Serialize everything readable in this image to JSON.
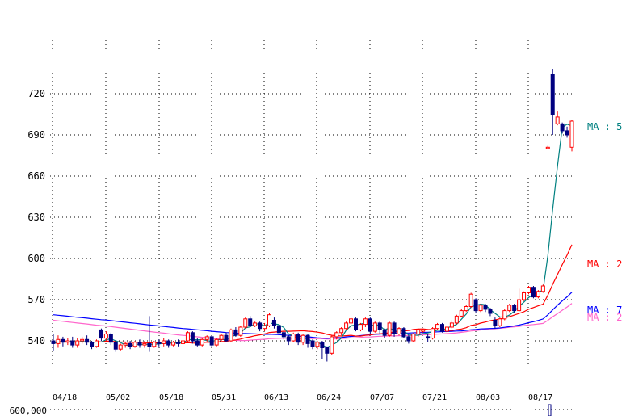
{
  "chart_data": {
    "type": "candlestick",
    "y_ticks": [
      "720",
      "690",
      "660",
      "630",
      "600",
      "570",
      "540"
    ],
    "y_tick_values": [
      720,
      690,
      660,
      630,
      600,
      570,
      540
    ],
    "x_ticks": [
      "04/18",
      "05/02",
      "05/18",
      "05/31",
      "06/13",
      "06/24",
      "07/07",
      "07/21",
      "08/03",
      "08/17"
    ],
    "ylim": [
      522,
      736
    ],
    "grid": true,
    "colors": {
      "up": "#ff0000",
      "down": "#000080",
      "ma5": "#008080",
      "ma25": "#ff0000",
      "ma75": "#0000ff",
      "ma200": "#ff66cc"
    },
    "moving_average_labels": [
      {
        "label": "MA : 5",
        "color": "#008080",
        "value": 690
      },
      {
        "label": "MA : 2",
        "color": "#ff0000",
        "value": 597
      },
      {
        "label": "MA : 7",
        "color": "#0000ff",
        "value": 562
      },
      {
        "label": "MA : 2",
        "color": "#ff66cc",
        "value": 556
      }
    ],
    "volume_tick": "600,000",
    "candles": [
      {
        "o": 540,
        "c": 538,
        "h": 545,
        "l": 533
      },
      {
        "o": 538,
        "c": 541,
        "h": 544,
        "l": 535
      },
      {
        "o": 541,
        "c": 539,
        "h": 543,
        "l": 536
      },
      {
        "o": 539,
        "c": 540,
        "h": 542,
        "l": 537
      },
      {
        "o": 540,
        "c": 537,
        "h": 543,
        "l": 535
      },
      {
        "o": 537,
        "c": 540,
        "h": 542,
        "l": 535
      },
      {
        "o": 540,
        "c": 541,
        "h": 543,
        "l": 538
      },
      {
        "o": 541,
        "c": 539,
        "h": 544,
        "l": 537
      },
      {
        "o": 539,
        "c": 536,
        "h": 540,
        "l": 534
      },
      {
        "o": 536,
        "c": 540,
        "h": 541,
        "l": 535
      },
      {
        "o": 548,
        "c": 542,
        "h": 549,
        "l": 540
      },
      {
        "o": 542,
        "c": 545,
        "h": 547,
        "l": 540
      },
      {
        "o": 545,
        "c": 539,
        "h": 546,
        "l": 537
      },
      {
        "o": 539,
        "c": 534,
        "h": 540,
        "l": 532
      },
      {
        "o": 534,
        "c": 537,
        "h": 538,
        "l": 533
      },
      {
        "o": 537,
        "c": 538,
        "h": 539,
        "l": 535
      },
      {
        "o": 538,
        "c": 536,
        "h": 540,
        "l": 534
      },
      {
        "o": 536,
        "c": 539,
        "h": 540,
        "l": 535
      },
      {
        "o": 539,
        "c": 537,
        "h": 541,
        "l": 535
      },
      {
        "o": 537,
        "c": 538,
        "h": 540,
        "l": 535
      },
      {
        "o": 538,
        "c": 536,
        "h": 558,
        "l": 532
      },
      {
        "o": 536,
        "c": 539,
        "h": 540,
        "l": 535
      },
      {
        "o": 539,
        "c": 538,
        "h": 541,
        "l": 536
      },
      {
        "o": 538,
        "c": 540,
        "h": 542,
        "l": 536
      },
      {
        "o": 540,
        "c": 537,
        "h": 541,
        "l": 535
      },
      {
        "o": 537,
        "c": 539,
        "h": 540,
        "l": 536
      },
      {
        "o": 539,
        "c": 538,
        "h": 541,
        "l": 536
      },
      {
        "o": 538,
        "c": 540,
        "h": 541,
        "l": 537
      },
      {
        "o": 540,
        "c": 546,
        "h": 547,
        "l": 539
      },
      {
        "o": 546,
        "c": 540,
        "h": 547,
        "l": 538
      },
      {
        "o": 540,
        "c": 537,
        "h": 542,
        "l": 536
      },
      {
        "o": 537,
        "c": 541,
        "h": 542,
        "l": 536
      },
      {
        "o": 541,
        "c": 543,
        "h": 544,
        "l": 539
      },
      {
        "o": 543,
        "c": 537,
        "h": 544,
        "l": 536
      },
      {
        "o": 537,
        "c": 541,
        "h": 542,
        "l": 536
      },
      {
        "o": 541,
        "c": 544,
        "h": 545,
        "l": 540
      },
      {
        "o": 544,
        "c": 540,
        "h": 546,
        "l": 539
      },
      {
        "o": 540,
        "c": 548,
        "h": 549,
        "l": 539
      },
      {
        "o": 548,
        "c": 544,
        "h": 550,
        "l": 543
      },
      {
        "o": 544,
        "c": 550,
        "h": 551,
        "l": 543
      },
      {
        "o": 550,
        "c": 556,
        "h": 557,
        "l": 549
      },
      {
        "o": 556,
        "c": 551,
        "h": 558,
        "l": 550
      },
      {
        "o": 551,
        "c": 553,
        "h": 554,
        "l": 550
      },
      {
        "o": 553,
        "c": 549,
        "h": 554,
        "l": 547
      },
      {
        "o": 549,
        "c": 551,
        "h": 553,
        "l": 547
      },
      {
        "o": 551,
        "c": 559,
        "h": 560,
        "l": 550
      },
      {
        "o": 555,
        "c": 551,
        "h": 557,
        "l": 549
      },
      {
        "o": 551,
        "c": 546,
        "h": 552,
        "l": 544
      },
      {
        "o": 546,
        "c": 543,
        "h": 547,
        "l": 541
      },
      {
        "o": 543,
        "c": 540,
        "h": 544,
        "l": 537
      },
      {
        "o": 540,
        "c": 545,
        "h": 546,
        "l": 539
      },
      {
        "o": 545,
        "c": 539,
        "h": 546,
        "l": 537
      },
      {
        "o": 539,
        "c": 544,
        "h": 545,
        "l": 537
      },
      {
        "o": 544,
        "c": 538,
        "h": 545,
        "l": 535
      },
      {
        "o": 540,
        "c": 536,
        "h": 541,
        "l": 534
      },
      {
        "o": 536,
        "c": 539,
        "h": 540,
        "l": 534
      },
      {
        "o": 539,
        "c": 535,
        "h": 540,
        "l": 527
      },
      {
        "o": 535,
        "c": 531,
        "h": 536,
        "l": 525
      },
      {
        "o": 531,
        "c": 543,
        "h": 544,
        "l": 530
      },
      {
        "o": 543,
        "c": 546,
        "h": 547,
        "l": 541
      },
      {
        "o": 546,
        "c": 549,
        "h": 550,
        "l": 544
      },
      {
        "o": 549,
        "c": 553,
        "h": 554,
        "l": 548
      },
      {
        "o": 553,
        "c": 556,
        "h": 557,
        "l": 552
      },
      {
        "o": 556,
        "c": 548,
        "h": 557,
        "l": 547
      },
      {
        "o": 548,
        "c": 552,
        "h": 553,
        "l": 547
      },
      {
        "o": 552,
        "c": 556,
        "h": 557,
        "l": 550
      },
      {
        "o": 556,
        "c": 547,
        "h": 557,
        "l": 545
      },
      {
        "o": 547,
        "c": 553,
        "h": 554,
        "l": 546
      },
      {
        "o": 553,
        "c": 548,
        "h": 554,
        "l": 545
      },
      {
        "o": 548,
        "c": 544,
        "h": 549,
        "l": 542
      },
      {
        "o": 544,
        "c": 553,
        "h": 554,
        "l": 543
      },
      {
        "o": 553,
        "c": 545,
        "h": 554,
        "l": 543
      },
      {
        "o": 545,
        "c": 549,
        "h": 550,
        "l": 544
      },
      {
        "o": 549,
        "c": 543,
        "h": 550,
        "l": 542
      },
      {
        "o": 543,
        "c": 540,
        "h": 544,
        "l": 538
      },
      {
        "o": 540,
        "c": 545,
        "h": 546,
        "l": 539
      },
      {
        "o": 545,
        "c": 548,
        "h": 549,
        "l": 543
      },
      {
        "o": 547,
        "c": 548,
        "h": 549,
        "l": 546
      },
      {
        "o": 543,
        "c": 542,
        "h": 545,
        "l": 539
      },
      {
        "o": 542,
        "c": 549,
        "h": 550,
        "l": 541
      },
      {
        "o": 549,
        "c": 552,
        "h": 553,
        "l": 548
      },
      {
        "o": 552,
        "c": 547,
        "h": 553,
        "l": 546
      },
      {
        "o": 547,
        "c": 550,
        "h": 551,
        "l": 546
      },
      {
        "o": 550,
        "c": 553,
        "h": 555,
        "l": 549
      },
      {
        "o": 553,
        "c": 558,
        "h": 559,
        "l": 552
      },
      {
        "o": 558,
        "c": 562,
        "h": 563,
        "l": 557
      },
      {
        "o": 562,
        "c": 565,
        "h": 566,
        "l": 561
      },
      {
        "o": 565,
        "c": 574,
        "h": 575,
        "l": 564
      },
      {
        "o": 570,
        "c": 562,
        "h": 571,
        "l": 560
      },
      {
        "o": 562,
        "c": 566,
        "h": 567,
        "l": 561
      },
      {
        "o": 566,
        "c": 563,
        "h": 567,
        "l": 561
      },
      {
        "o": 563,
        "c": 560,
        "h": 564,
        "l": 558
      },
      {
        "o": 555,
        "c": 551,
        "h": 557,
        "l": 549
      },
      {
        "o": 551,
        "c": 556,
        "h": 557,
        "l": 550
      },
      {
        "o": 556,
        "c": 562,
        "h": 563,
        "l": 555
      },
      {
        "o": 562,
        "c": 566,
        "h": 567,
        "l": 561
      },
      {
        "o": 566,
        "c": 562,
        "h": 567,
        "l": 560
      },
      {
        "o": 562,
        "c": 570,
        "h": 578,
        "l": 561
      },
      {
        "o": 570,
        "c": 575,
        "h": 576,
        "l": 569
      },
      {
        "o": 575,
        "c": 579,
        "h": 580,
        "l": 574
      },
      {
        "o": 579,
        "c": 572,
        "h": 580,
        "l": 571
      },
      {
        "o": 572,
        "c": 576,
        "h": 577,
        "l": 571
      },
      {
        "o": 576,
        "c": 580,
        "h": 581,
        "l": 575
      },
      {
        "o": 681,
        "c": 681,
        "h": 682,
        "l": 680
      },
      {
        "o": 734,
        "c": 705,
        "h": 738,
        "l": 690
      },
      {
        "o": 698,
        "c": 703,
        "h": 707,
        "l": 697
      },
      {
        "o": 698,
        "c": 693,
        "h": 699,
        "l": 691
      },
      {
        "o": 693,
        "c": 690,
        "h": 696,
        "l": 688
      },
      {
        "o": 681,
        "c": 700,
        "h": 701,
        "l": 678
      }
    ]
  }
}
